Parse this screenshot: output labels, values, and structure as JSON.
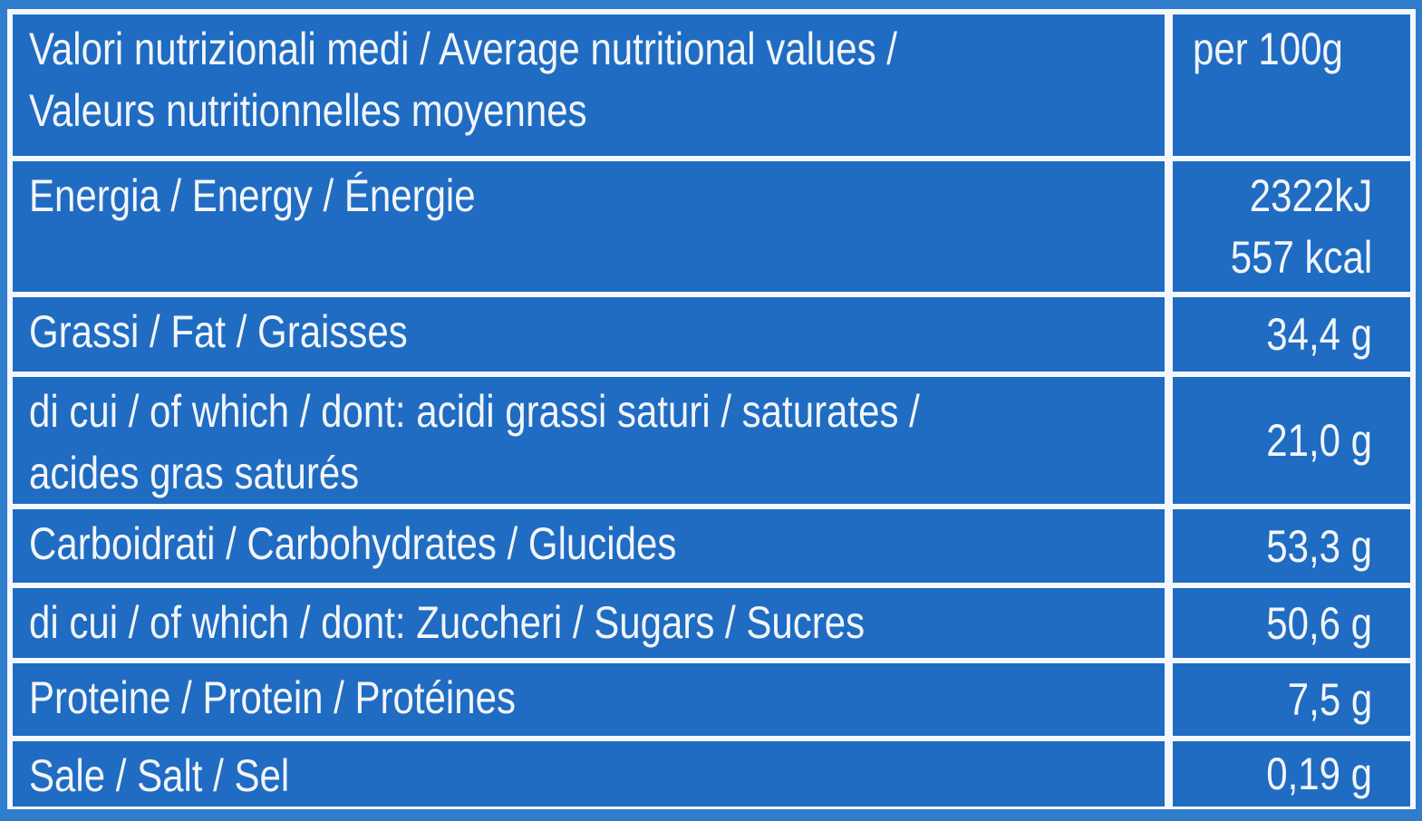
{
  "table": {
    "header": {
      "label": [
        "Valori nutrizionali medi / Average nutritional values /",
        "Valeurs nutritionnelles moyennes"
      ],
      "value": [
        "per 100g"
      ]
    },
    "rows": [
      {
        "label": [
          "Energia / Energy / Énergie"
        ],
        "value": [
          "2322kJ",
          "557 kcal"
        ]
      },
      {
        "label": [
          "Grassi / Fat / Graisses"
        ],
        "value": [
          "34,4 g"
        ]
      },
      {
        "label": [
          "di cui / of which / dont: acidi grassi saturi / saturates /",
          "acides gras saturés"
        ],
        "value": [
          "21,0 g"
        ]
      },
      {
        "label": [
          "Carboidrati / Carbohydrates / Glucides"
        ],
        "value": [
          "53,3 g"
        ]
      },
      {
        "label": [
          "di cui / of which / dont: Zuccheri / Sugars / Sucres"
        ],
        "value": [
          "50,6 g"
        ]
      },
      {
        "label": [
          "Proteine / Protein / Protéines"
        ],
        "value": [
          "7,5 g"
        ]
      },
      {
        "label": [
          "Sale / Salt / Sel"
        ],
        "value": [
          "0,19 g"
        ]
      }
    ]
  }
}
